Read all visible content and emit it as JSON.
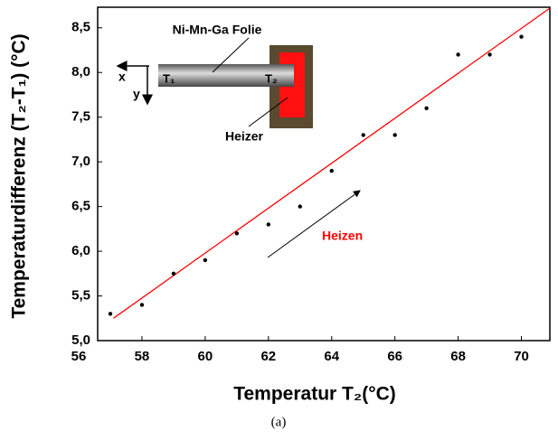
{
  "chart_data": {
    "type": "scatter",
    "x_label": "Temperatur T₂(°C)",
    "y_label": "Temperaturdifferenz (T₂-T₁) (°C)",
    "caption": "(a)",
    "x": [
      57,
      58,
      59,
      60,
      61,
      62,
      63,
      64,
      65,
      66,
      67,
      68,
      69,
      70
    ],
    "values": [
      5.3,
      5.4,
      5.75,
      5.9,
      6.2,
      6.3,
      6.5,
      6.9,
      7.3,
      7.3,
      7.6,
      8.2,
      8.2,
      8.4
    ],
    "color": "#000000",
    "fit": {
      "x": [
        57.1,
        70.9
      ],
      "values": [
        5.25,
        8.72
      ],
      "color": "#ff0000"
    },
    "xlim": [
      56.6,
      70.9
    ],
    "xticks": [
      56,
      58,
      60,
      62,
      64,
      66,
      68,
      70
    ],
    "ylim": [
      5.0,
      8.73
    ],
    "yticks": [
      {
        "value": 5.0,
        "label": "5,0"
      },
      {
        "value": 5.5,
        "label": "5,5"
      },
      {
        "value": 6.0,
        "label": "6,0"
      },
      {
        "value": 6.5,
        "label": "6,5"
      },
      {
        "value": 7.0,
        "label": "7,0"
      },
      {
        "value": 7.5,
        "label": "7,5"
      },
      {
        "value": 8.0,
        "label": "8,0"
      },
      {
        "value": 8.5,
        "label": "8,5"
      }
    ],
    "annotations": {
      "heating": "Heizen",
      "foil": "Ni-Mn-Ga Folie",
      "t1": "T₁",
      "t2": "T₂",
      "heater": "Heizer",
      "x_axis": "x",
      "y_axis": "y"
    }
  }
}
